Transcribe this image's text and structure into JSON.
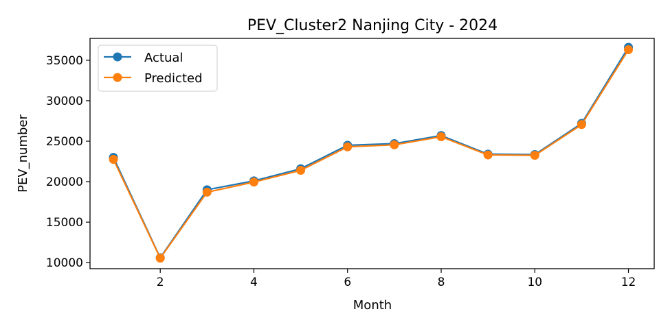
{
  "chart_data": {
    "type": "line",
    "title": "PEV_Cluster2 Nanjing City - 2024",
    "xlabel": "Month",
    "ylabel": "PEV_number",
    "x": [
      1,
      2,
      3,
      4,
      5,
      6,
      7,
      8,
      9,
      10,
      11,
      12
    ],
    "xlim": [
      0.5,
      12.55
    ],
    "ylim": [
      9250,
      37700
    ],
    "xticks": [
      2,
      4,
      6,
      8,
      10,
      12
    ],
    "yticks": [
      10000,
      15000,
      20000,
      25000,
      30000,
      35000
    ],
    "grid": false,
    "legend_position": "upper-left",
    "marker": "circle",
    "series": [
      {
        "name": "Actual",
        "color": "#1f77b4",
        "values": [
          23000,
          10600,
          19000,
          20100,
          21600,
          24500,
          24700,
          25700,
          23400,
          23350,
          27200,
          36600
        ]
      },
      {
        "name": "Predicted",
        "color": "#ff7f0e",
        "values": [
          22750,
          10550,
          18700,
          19950,
          21400,
          24300,
          24550,
          25550,
          23300,
          23250,
          27050,
          36300
        ]
      }
    ]
  }
}
